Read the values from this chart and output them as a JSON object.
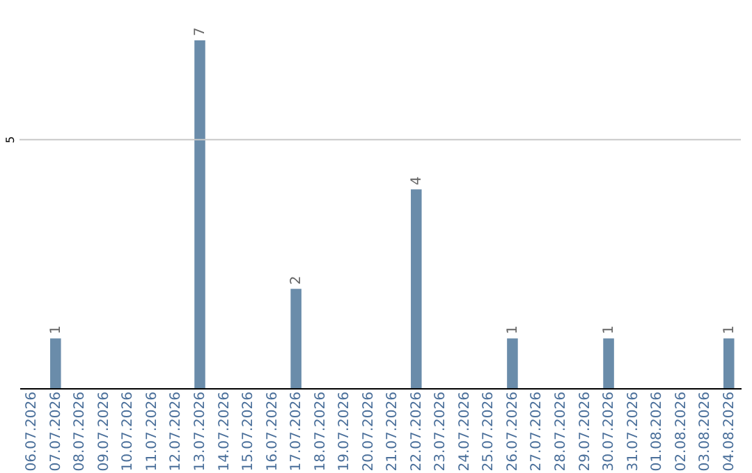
{
  "chart_data": {
    "type": "bar",
    "categories": [
      "06.07.2026",
      "07.07.2026",
      "08.07.2026",
      "09.07.2026",
      "10.07.2026",
      "11.07.2026",
      "12.07.2026",
      "13.07.2026",
      "14.07.2026",
      "15.07.2026",
      "16.07.2026",
      "17.07.2026",
      "18.07.2026",
      "19.07.2026",
      "20.07.2026",
      "21.07.2026",
      "22.07.2026",
      "23.07.2026",
      "24.07.2026",
      "25.07.2026",
      "26.07.2026",
      "27.07.2026",
      "28.07.2026",
      "29.07.2026",
      "30.07.2026",
      "31.07.2026",
      "01.08.2026",
      "02.08.2026",
      "03.08.2026",
      "04.08.2026"
    ],
    "values": [
      0,
      1,
      0,
      0,
      0,
      0,
      0,
      7,
      0,
      0,
      0,
      2,
      0,
      0,
      0,
      0,
      4,
      0,
      0,
      0,
      1,
      0,
      0,
      0,
      1,
      0,
      0,
      0,
      0,
      1
    ],
    "value_labels": [
      null,
      "1",
      null,
      null,
      null,
      null,
      null,
      "7",
      null,
      null,
      null,
      "2",
      null,
      null,
      null,
      null,
      "4",
      null,
      null,
      null,
      "1",
      null,
      null,
      null,
      "1",
      null,
      null,
      null,
      null,
      "1"
    ],
    "color": "#6a8caa",
    "ref_lines": [
      {
        "axis": "y",
        "value": 5,
        "label": "5",
        "color": "#c8c8c8"
      }
    ]
  }
}
